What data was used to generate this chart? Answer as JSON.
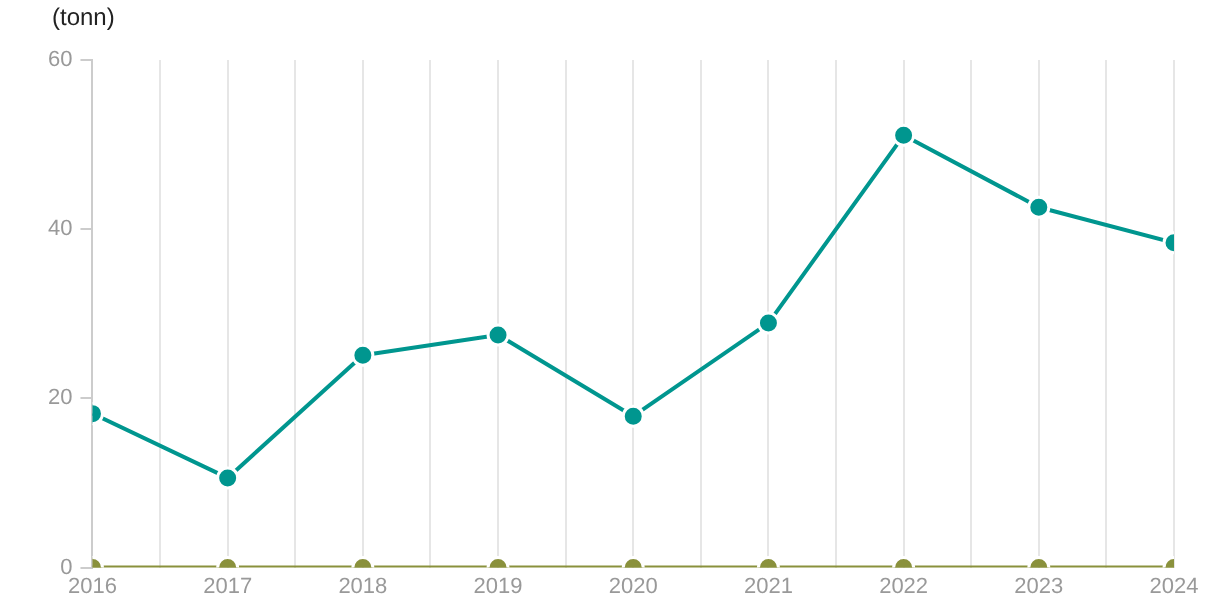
{
  "chart_data": {
    "type": "line",
    "ylabel": "(tonn)",
    "x": [
      2016,
      2017,
      2018,
      2019,
      2020,
      2021,
      2022,
      2023,
      2024
    ],
    "series": [
      {
        "color": "#00968f",
        "values": [
          18.2,
          10.6,
          25.1,
          27.5,
          17.9,
          28.9,
          51.1,
          42.6,
          38.4
        ]
      },
      {
        "color": "#8a913c",
        "values": [
          0,
          0,
          0,
          0,
          0,
          0,
          0,
          0,
          0
        ]
      }
    ],
    "xlim": [
      2016,
      2024
    ],
    "xticks": [
      2016,
      {
        "value": 2016.5,
        "label": null
      },
      2017,
      {
        "value": 2017.5,
        "label": null
      },
      2018,
      {
        "value": 2018.5,
        "label": null
      },
      2019,
      {
        "value": 2019.5,
        "label": null
      },
      2020,
      {
        "value": 2020.5,
        "label": null
      },
      2021,
      {
        "value": 2021.5,
        "label": null
      },
      2022,
      {
        "value": 2022.5,
        "label": null
      },
      2023,
      {
        "value": 2023.5,
        "label": null
      },
      2024
    ],
    "ylim": [
      0,
      60
    ],
    "yticks": [
      0,
      20,
      40,
      60
    ],
    "grid": "x",
    "legend": false,
    "marker": "circle",
    "line_style": "solid"
  }
}
